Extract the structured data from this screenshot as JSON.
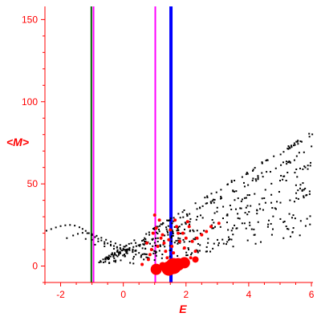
{
  "chart_data": {
    "type": "scatter",
    "xlabel": "E",
    "ylabel": "<M>",
    "xlim": [
      -2.5,
      6.05
    ],
    "ylim": [
      -10,
      158
    ],
    "x_ticks": [
      -2,
      0,
      2,
      4,
      6
    ],
    "y_ticks": [
      0,
      50,
      100,
      150
    ],
    "grid": false,
    "colors": {
      "axis": "#ff0000",
      "points": "#000000",
      "highlight": "#ff0000"
    },
    "bands": [
      {
        "color": "#000000",
        "slope": 11.47,
        "xmin": -0.85,
        "xmax": 6.05,
        "count": 85,
        "spread": 1.2
      },
      {
        "color": "#000000",
        "slope": 10.18,
        "xmin": -0.75,
        "xmax": 6.05,
        "count": 80,
        "spread": 1.8
      },
      {
        "color": "#000000",
        "slope": 8.7,
        "xmin": -0.65,
        "xmax": 6.05,
        "count": 80,
        "spread": 3.0
      },
      {
        "color": "#000000",
        "slope": 6.8,
        "xmin": -0.6,
        "xmax": 6.05,
        "count": 120,
        "spread": 6.0
      },
      {
        "color": "#000000",
        "slope": 4.0,
        "xmin": -0.5,
        "xmax": 6.05,
        "count": 140,
        "spread": 9.0
      }
    ],
    "series": [
      {
        "color": "#000000",
        "points": [
          [
            -2.45,
            21.5
          ],
          [
            -2.3,
            22.5
          ],
          [
            -2.15,
            23.5
          ],
          [
            -2.0,
            24.3
          ],
          [
            -1.85,
            24.8
          ],
          [
            -1.7,
            25.0
          ],
          [
            -1.55,
            24.6
          ],
          [
            -1.4,
            23.6
          ],
          [
            -1.3,
            22.6
          ],
          [
            -1.2,
            21.4
          ],
          [
            -1.1,
            20.0
          ],
          [
            -1.0,
            18.8
          ],
          [
            -0.9,
            17.6
          ],
          [
            -0.8,
            16.6
          ],
          [
            -0.7,
            15.6
          ],
          [
            -0.6,
            14.6
          ],
          [
            -0.5,
            13.8
          ],
          [
            -0.4,
            13.0
          ],
          [
            -0.3,
            12.2
          ],
          [
            -0.2,
            11.6
          ],
          [
            -0.1,
            11.0
          ],
          [
            0.0,
            10.5
          ],
          [
            0.1,
            10.0
          ],
          [
            0.2,
            9.7
          ],
          [
            0.3,
            9.4
          ],
          [
            0.4,
            9.2
          ],
          [
            -1.8,
            17.0
          ],
          [
            -1.6,
            18.6
          ],
          [
            -1.45,
            19.6
          ],
          [
            -1.3,
            20.2
          ],
          [
            -1.15,
            20.0
          ],
          [
            -1.0,
            19.4
          ],
          [
            -0.85,
            18.4
          ],
          [
            -0.7,
            17.2
          ],
          [
            -0.55,
            16.0
          ],
          [
            -0.4,
            14.8
          ],
          [
            -0.25,
            13.8
          ],
          [
            -0.1,
            12.8
          ],
          [
            0.05,
            11.8
          ],
          [
            0.2,
            11.0
          ],
          [
            -1.2,
            16.5
          ],
          [
            -1.0,
            16.0
          ],
          [
            -0.8,
            15.0
          ],
          [
            -0.6,
            13.5
          ],
          [
            -0.4,
            12.5
          ],
          [
            -0.2,
            11.2
          ],
          [
            0.0,
            9.8
          ],
          [
            0.3,
            8.5
          ],
          [
            0.5,
            8.0
          ],
          [
            0.7,
            7.2
          ],
          [
            -0.9,
            13.0
          ],
          [
            -0.6,
            12.0
          ],
          [
            -0.3,
            10.5
          ],
          [
            0.1,
            8.0
          ],
          [
            0.4,
            7.0
          ]
        ]
      },
      {
        "color": "#ff0000",
        "points": [
          [
            0.6,
            1.0,
            2
          ],
          [
            0.8,
            4.0,
            2
          ],
          [
            0.9,
            10.0,
            2
          ],
          [
            0.95,
            20.0,
            2
          ],
          [
            1.05,
            23.0,
            2
          ],
          [
            1.0,
            31.0,
            2
          ],
          [
            1.2,
            17.0,
            2
          ],
          [
            1.3,
            14.0,
            2
          ],
          [
            1.35,
            9.0,
            2
          ],
          [
            1.4,
            5.0,
            2
          ],
          [
            1.45,
            16.0,
            2
          ],
          [
            1.55,
            12.0,
            2
          ],
          [
            1.6,
            8.0,
            2
          ],
          [
            1.65,
            28.0,
            2
          ],
          [
            1.7,
            24.0,
            2
          ],
          [
            1.75,
            20.0,
            2
          ],
          [
            1.8,
            15.0,
            2
          ],
          [
            1.9,
            20.0,
            2
          ],
          [
            2.0,
            17.0,
            2
          ],
          [
            2.05,
            27.0,
            2
          ],
          [
            2.1,
            24.0,
            2
          ],
          [
            2.2,
            15.0,
            2
          ],
          [
            2.35,
            17.0,
            2
          ],
          [
            2.5,
            19.0,
            2
          ],
          [
            2.65,
            21.0,
            2
          ],
          [
            2.8,
            24.0,
            2
          ],
          [
            3.05,
            26.0,
            2
          ],
          [
            0.85,
            7.0,
            2
          ],
          [
            1.15,
            28.0,
            2
          ],
          [
            1.25,
            19.0,
            2
          ],
          [
            1.5,
            22.0,
            2
          ],
          [
            1.95,
            11.0,
            2
          ],
          [
            2.3,
            9.0,
            2
          ],
          [
            2.15,
            5.0,
            2
          ],
          [
            0.75,
            14.0,
            2
          ],
          [
            1.1,
            12.0,
            2
          ],
          [
            1.05,
            -2.0,
            7
          ],
          [
            1.45,
            -1.5,
            9
          ],
          [
            1.6,
            0.0,
            10
          ],
          [
            1.75,
            1.0,
            8
          ],
          [
            1.95,
            2.0,
            7
          ],
          [
            2.3,
            4.0,
            4
          ],
          [
            1.25,
            0.5,
            4
          ]
        ]
      }
    ],
    "vlines": [
      {
        "x": -1.02,
        "color": "#006400",
        "width": 2
      },
      {
        "x": -0.95,
        "color": "#ff00ff",
        "width": 2
      },
      {
        "x": 1.02,
        "color": "#ff00ff",
        "width": 2
      },
      {
        "x": 1.52,
        "color": "#0000ff",
        "width": 4
      }
    ]
  }
}
